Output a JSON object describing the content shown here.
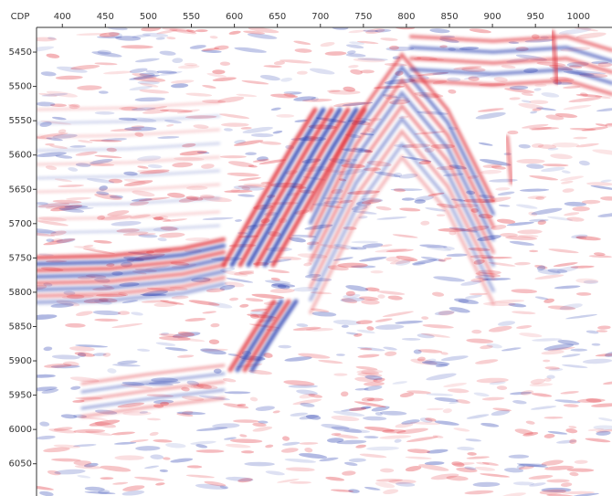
{
  "chart_data": {
    "type": "seismic",
    "x_label": "CDP",
    "xlim": [
      370,
      1039
    ],
    "ylim": [
      5414,
      6097
    ],
    "xticks": [
      400,
      450,
      500,
      550,
      600,
      650,
      700,
      750,
      800,
      850,
      900,
      950,
      1000
    ],
    "yticks": [
      5450,
      5500,
      5550,
      5600,
      5650,
      5700,
      5750,
      5800,
      5850,
      5900,
      5950,
      6000,
      6050
    ]
  }
}
